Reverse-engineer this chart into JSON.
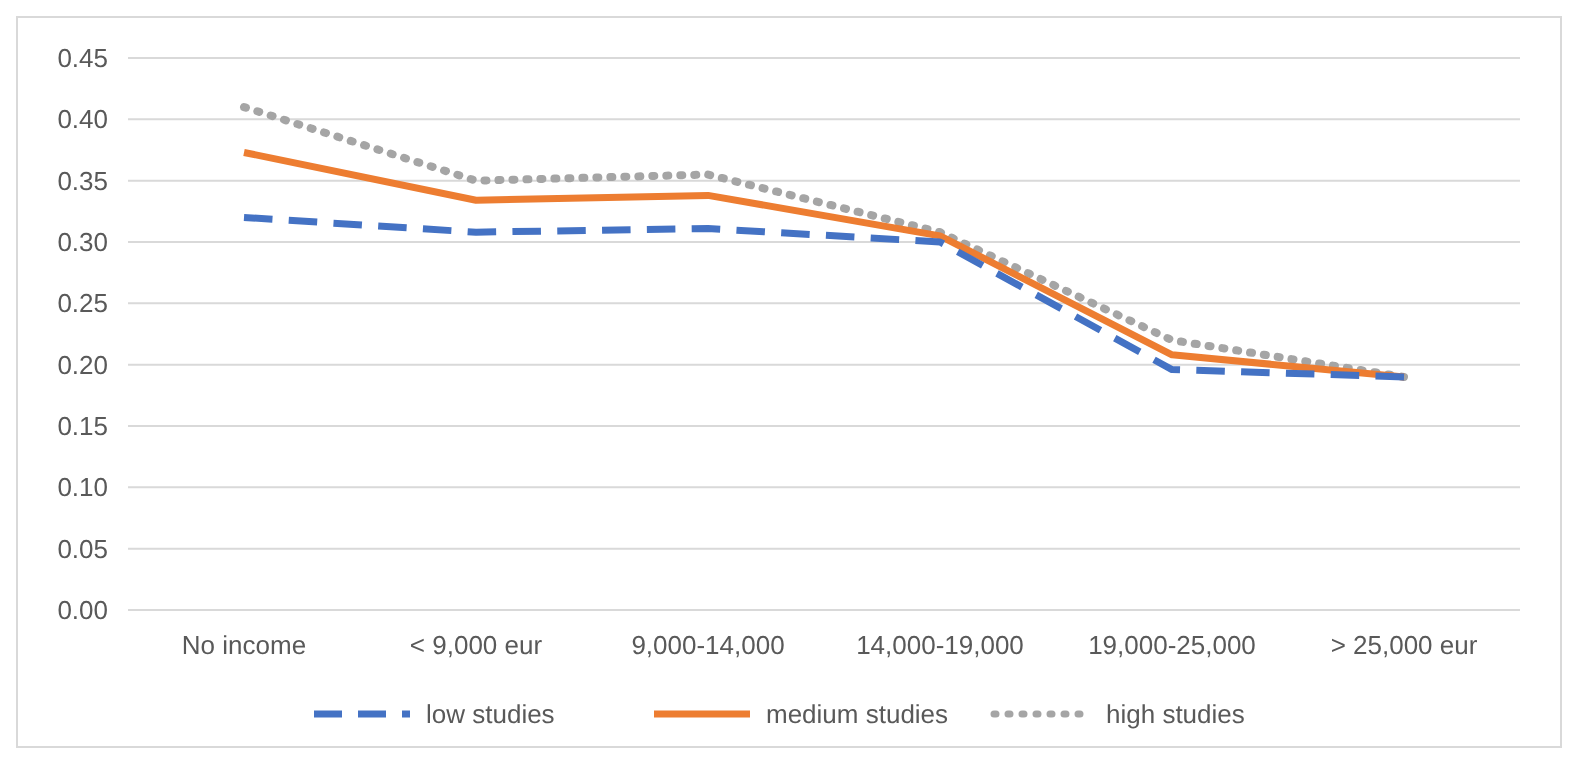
{
  "chart_data": {
    "type": "line",
    "categories": [
      "No income",
      "< 9,000 eur",
      "9,000-14,000",
      "14,000-19,000",
      "19,000-25,000",
      "> 25,000 eur"
    ],
    "series": [
      {
        "name": "low studies",
        "color": "#4472c4",
        "line_style": "dashed",
        "values": [
          0.32,
          0.308,
          0.311,
          0.3,
          0.196,
          0.19
        ]
      },
      {
        "name": "medium studies",
        "color": "#ed7d31",
        "line_style": "solid",
        "values": [
          0.373,
          0.334,
          0.338,
          0.305,
          0.208,
          0.19
        ]
      },
      {
        "name": "high studies",
        "color": "#a5a5a5",
        "line_style": "dotted",
        "values": [
          0.41,
          0.35,
          0.355,
          0.308,
          0.22,
          0.19
        ]
      }
    ],
    "ylim": [
      0,
      0.45
    ],
    "yticks": [
      {
        "value": 0,
        "label": "0.00"
      },
      {
        "value": 0.05,
        "label": "0.05"
      },
      {
        "value": 0.1,
        "label": "0.10"
      },
      {
        "value": 0.15,
        "label": "0.15"
      },
      {
        "value": 0.2,
        "label": "0.20"
      },
      {
        "value": 0.25,
        "label": "0.25"
      },
      {
        "value": 0.3,
        "label": "0.30"
      },
      {
        "value": 0.35,
        "label": "0.35"
      },
      {
        "value": 0.4,
        "label": "0.40"
      },
      {
        "value": 0.45,
        "label": "0.45"
      }
    ],
    "grid": "y",
    "legend": "bottom",
    "marker": "none"
  }
}
